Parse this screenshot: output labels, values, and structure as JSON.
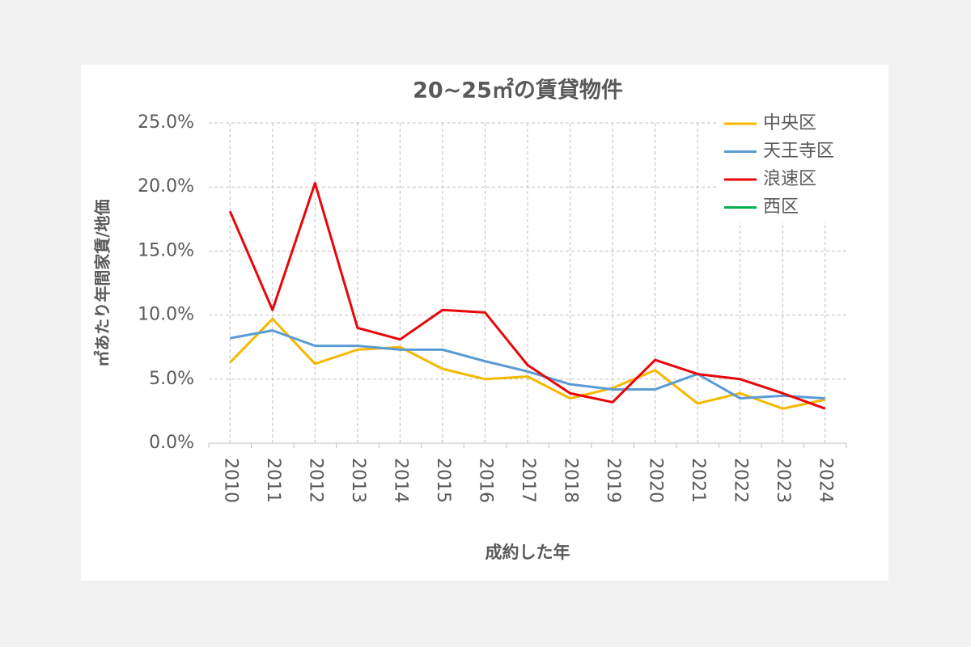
{
  "chart_data": {
    "type": "line",
    "title": "20~25㎡の賃貸物件",
    "x_label": "成約した年",
    "y_label": "㎡あたり年間家賃/地価",
    "categories": [
      "2010",
      "2011",
      "2012",
      "2013",
      "2014",
      "2015",
      "2016",
      "2017",
      "2018",
      "2019",
      "2020",
      "2021",
      "2022",
      "2023",
      "2024"
    ],
    "series": [
      {
        "name": "中央区",
        "color": "#f5b800",
        "values": [
          6.3,
          9.7,
          6.2,
          7.3,
          7.5,
          5.8,
          5.0,
          5.2,
          3.5,
          4.3,
          5.7,
          3.1,
          3.9,
          2.7,
          3.4
        ]
      },
      {
        "name": "天王寺区",
        "color": "#5b9bd5",
        "values": [
          8.2,
          8.8,
          7.6,
          7.6,
          7.3,
          7.3,
          6.4,
          5.6,
          4.6,
          4.2,
          4.2,
          5.4,
          3.5,
          3.7,
          3.5
        ]
      },
      {
        "name": "浪速区",
        "color": "#e8060b",
        "values": [
          18.1,
          10.4,
          20.3,
          9.0,
          8.1,
          10.4,
          10.2,
          6.1,
          3.9,
          3.2,
          6.5,
          5.4,
          5.0,
          3.9,
          2.7
        ]
      },
      {
        "name": "西区",
        "color": "#00b050",
        "values": [
          null,
          null,
          null,
          null,
          null,
          null,
          null,
          null,
          null,
          null,
          null,
          null,
          null,
          null,
          null
        ]
      }
    ],
    "ylim": [
      0,
      25
    ],
    "yticks": [
      {
        "value": 0,
        "label": "0.0%"
      },
      {
        "value": 5,
        "label": "5.0%"
      },
      {
        "value": 10,
        "label": "10.0%"
      },
      {
        "value": 15,
        "label": "15.0%"
      },
      {
        "value": 20,
        "label": "20.0%"
      },
      {
        "value": 25,
        "label": "25.0%"
      }
    ],
    "grid": true,
    "legend": "upper right"
  }
}
